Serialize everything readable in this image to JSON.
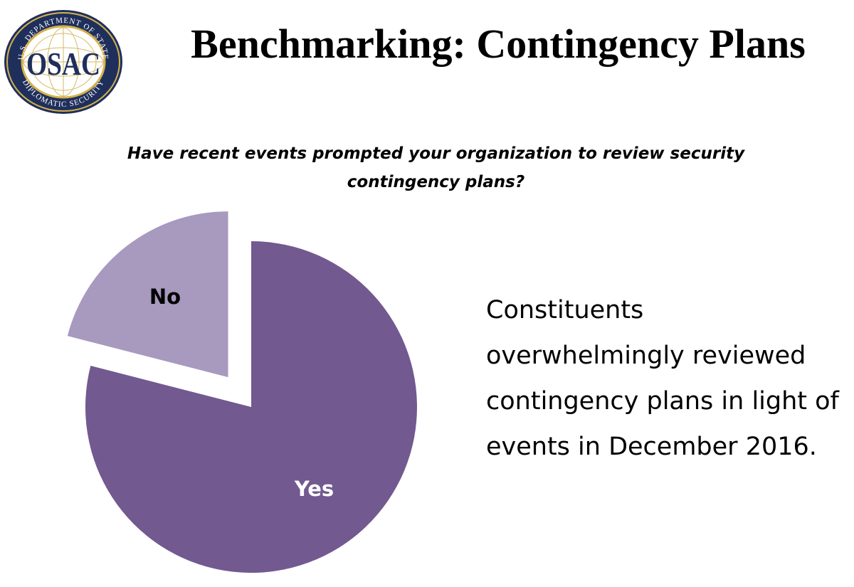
{
  "header": {
    "title": "Benchmarking: Contingency Plans"
  },
  "logo": {
    "name": "osac-logo",
    "wordmark": "OSAC",
    "ring_top": "U.S. DEPARTMENT OF STATE",
    "ring_bottom": "DIPLOMATIC SECURITY"
  },
  "chart_data": {
    "type": "pie",
    "title": "Have recent events prompted your organization to review security contingency plans?",
    "slices": [
      {
        "label": "Yes",
        "value": 79,
        "color": "#725990",
        "exploded": false
      },
      {
        "label": "No",
        "value": 21,
        "color": "#a899bf",
        "exploded": true
      }
    ],
    "label_colors": {
      "Yes": "#ffffff",
      "No": "#000000"
    }
  },
  "conclusion": {
    "text": "Constituents overwhelmingly reviewed  contingency plans in light of events in December 2016."
  }
}
